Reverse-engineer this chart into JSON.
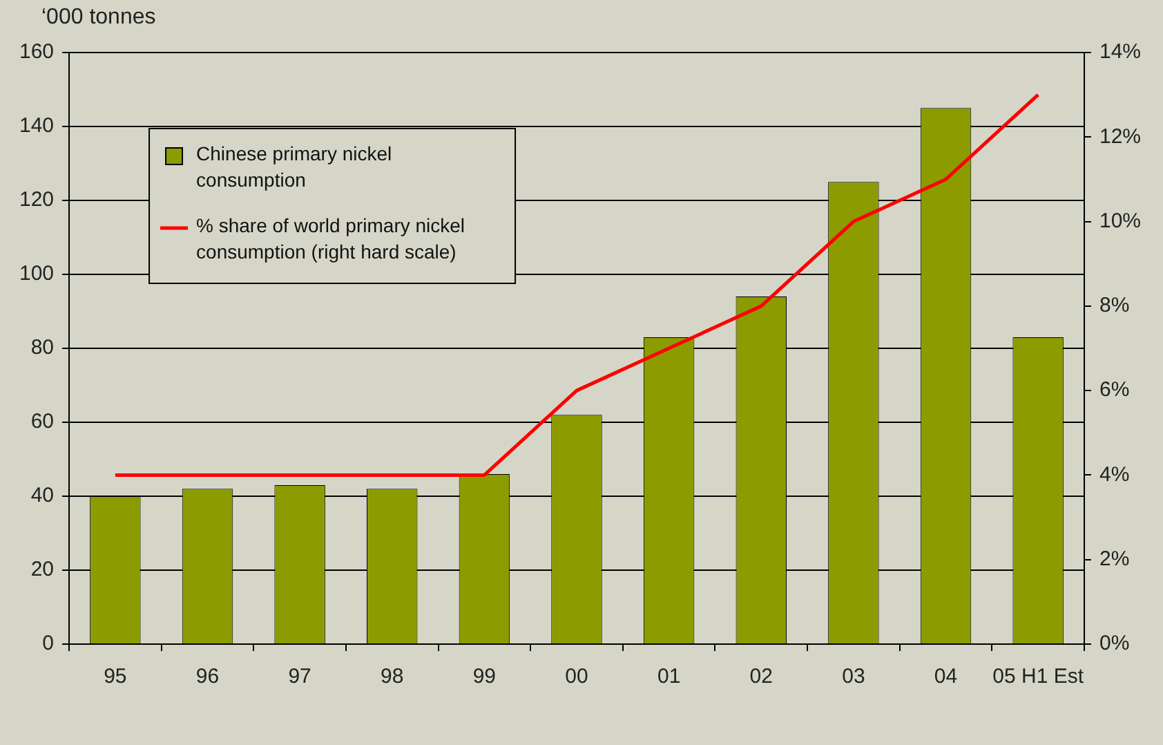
{
  "chart_data": {
    "type": "bar",
    "ylabel": "‘000 tonnes",
    "categories": [
      "95",
      "96",
      "97",
      "98",
      "99",
      "00",
      "01",
      "02",
      "03",
      "04",
      "05 H1 Est"
    ],
    "series": [
      {
        "name": "Chinese primary nickel consumption",
        "color": "#8c9c00",
        "values": [
          40,
          42,
          43,
          42,
          46,
          62,
          83,
          94,
          125,
          145,
          83
        ]
      },
      {
        "name": "% share of world primary nickel consumption (right hard scale)",
        "type": "line",
        "axis": "y2",
        "color": "#ff0000",
        "values": [
          4,
          4,
          4,
          4,
          4,
          6,
          7,
          8,
          10,
          11,
          13
        ]
      }
    ],
    "ylim": [
      0,
      160
    ],
    "yticks": [
      0,
      20,
      40,
      60,
      80,
      100,
      120,
      140,
      160
    ],
    "y2lim": [
      0,
      14
    ],
    "y2ticks": [
      {
        "value": 0,
        "label": "0%"
      },
      {
        "value": 2,
        "label": "2%"
      },
      {
        "value": 4,
        "label": "4%"
      },
      {
        "value": 6,
        "label": "6%"
      },
      {
        "value": 8,
        "label": "8%"
      },
      {
        "value": 10,
        "label": "10%"
      },
      {
        "value": 12,
        "label": "12%"
      },
      {
        "value": 14,
        "label": "14%"
      }
    ],
    "grid": "y",
    "legend": "top left",
    "marker": "none"
  }
}
